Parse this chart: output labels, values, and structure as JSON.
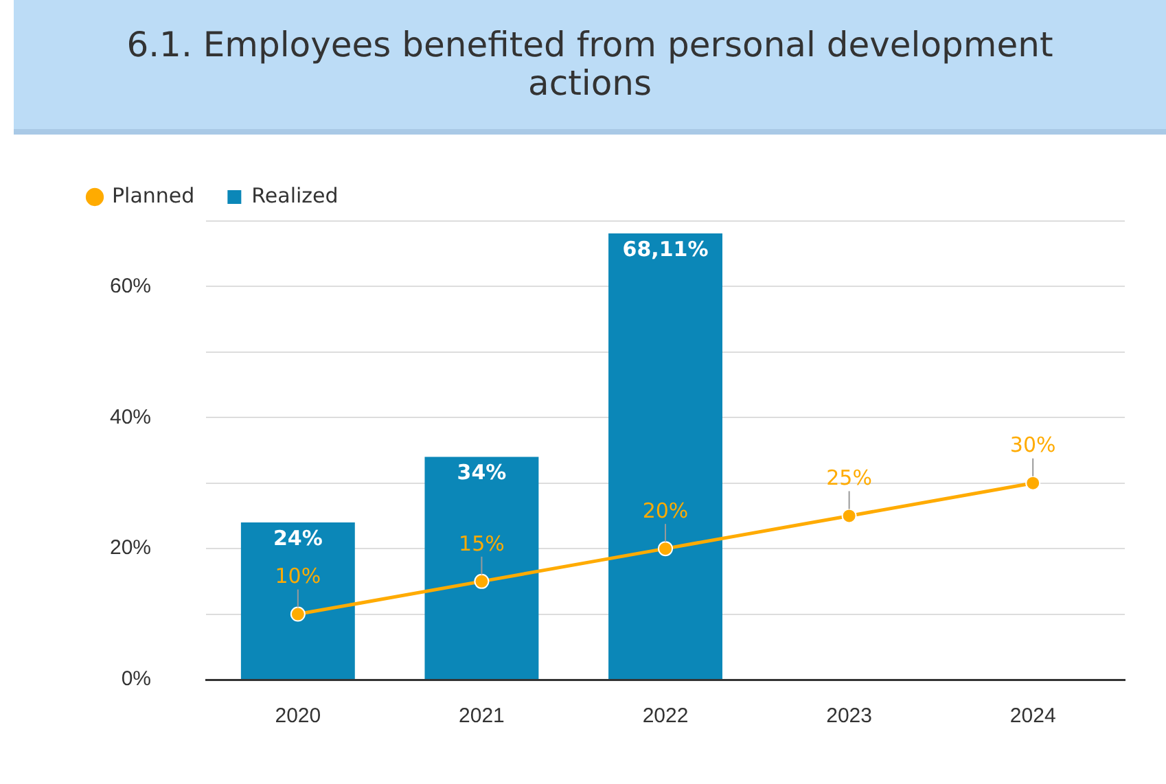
{
  "chart_data": {
    "type": "bar",
    "title": "6.1. Employees benefited from personal development actions",
    "categories": [
      "2020",
      "2021",
      "2022",
      "2023",
      "2024"
    ],
    "series": [
      {
        "name": "Planned",
        "type": "line",
        "color": "#ffab00",
        "values": [
          10,
          15,
          20,
          25,
          30
        ],
        "value_labels": [
          "10%",
          "15%",
          "20%",
          "25%",
          "30%"
        ]
      },
      {
        "name": "Realized",
        "color": "#0b87b8",
        "values": [
          24,
          34,
          68.11,
          null,
          null
        ],
        "value_labels": [
          "24%",
          "34%",
          "68,11%",
          null,
          null
        ]
      }
    ],
    "ylim": [
      0,
      70
    ],
    "yticks": [
      {
        "value": 0,
        "label": "0%"
      },
      {
        "value": 10,
        "label": null
      },
      {
        "value": 20,
        "label": "20%"
      },
      {
        "value": 30,
        "label": null
      },
      {
        "value": 40,
        "label": "40%"
      },
      {
        "value": 50,
        "label": null
      },
      {
        "value": 60,
        "label": "60%"
      },
      {
        "value": 70,
        "label": null
      }
    ],
    "grid": "y",
    "legend": "top left",
    "marker": "circle",
    "line_style": "solid"
  }
}
